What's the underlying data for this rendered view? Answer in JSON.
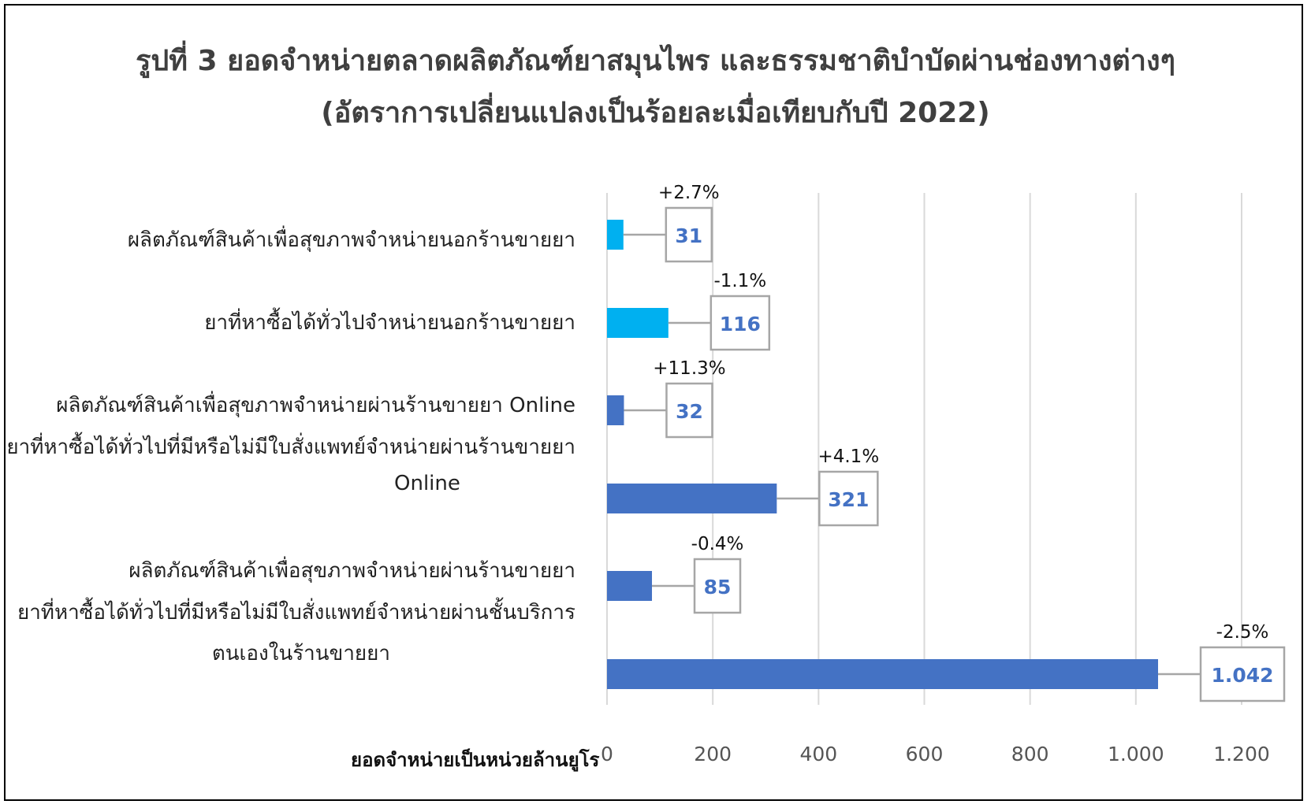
{
  "title_line1": "รูปที่ 3 ยอดจำหน่ายตลาดผลิตภัณฑ์ยาสมุนไพร และธรรมชาติบำบัดผ่านช่องทางต่างๆ",
  "title_line2": "(อัตราการเปลี่ยนแปลงเป็นร้อยละเมื่อเทียบกับปี 2022)",
  "colors": {
    "light_blue": "#00b0f0",
    "blue": "#4472c4",
    "grid": "#d9d9d9",
    "callout_border": "#a6a6a6",
    "value_text": "#4472c4"
  },
  "category_labels": {
    "g1": "ผลิตภัณฑ์สินค้าเพื่อสุขภาพจำหน่ายนอกร้านขายยา",
    "g2": "ยาที่หาซื้อได้ทั่วไปจำหน่ายนอกร้านขายยา",
    "g3": "ผลิตภัณฑ์สินค้าเพื่อสุขภาพจำหน่ายผ่านร้านขายยา Online",
    "g4a": "ยาที่หาซื้อได้ทั่วไปที่มีหรือไม่มีใบสั่งแพทย์จำหน่ายผ่านร้านขายยา",
    "g4b": "Online",
    "g5": "ผลิตภัณฑ์สินค้าเพื่อสุขภาพจำหน่ายผ่านร้านขายยา",
    "g6a": "ยาที่หาซื้อได้ทั่วไปที่มีหรือไม่มีใบสั่งแพทย์จำหน่ายผ่านชั้นบริการ",
    "g6b": "ตนเองในร้านขายยา"
  },
  "chart_data": {
    "type": "bar",
    "orientation": "horizontal",
    "title": "รูปที่ 3 ยอดจำหน่ายตลาดผลิตภัณฑ์ยาสมุนไพร และธรรมชาติบำบัดผ่านช่องทางต่างๆ (อัตราการเปลี่ยนแปลงเป็นร้อยละเมื่อเทียบกับปี 2022)",
    "xlabel": "ยอดจำหน่ายเป็นหน่วยล้านยูโร",
    "xlim": [
      0,
      1200
    ],
    "xticks": [
      0,
      200,
      400,
      600,
      800,
      1000,
      1200
    ],
    "xtick_labels": [
      "0",
      "200",
      "400",
      "600",
      "800",
      "1.000",
      "1.200"
    ],
    "grid": true,
    "bars": [
      {
        "value": 31,
        "label": "31",
        "change": "+2.7%",
        "color": "light_blue"
      },
      {
        "value": 116,
        "label": "116",
        "change": "-1.1%",
        "color": "light_blue"
      },
      {
        "value": 32,
        "label": "32",
        "change": "+11.3%",
        "color": "blue"
      },
      {
        "value": 321,
        "label": "321",
        "change": "+4.1%",
        "color": "blue"
      },
      {
        "value": 85,
        "label": "85",
        "change": "-0.4%",
        "color": "blue"
      },
      {
        "value": 1042,
        "label": "1.042",
        "change": "-2.5%",
        "color": "blue"
      }
    ]
  }
}
